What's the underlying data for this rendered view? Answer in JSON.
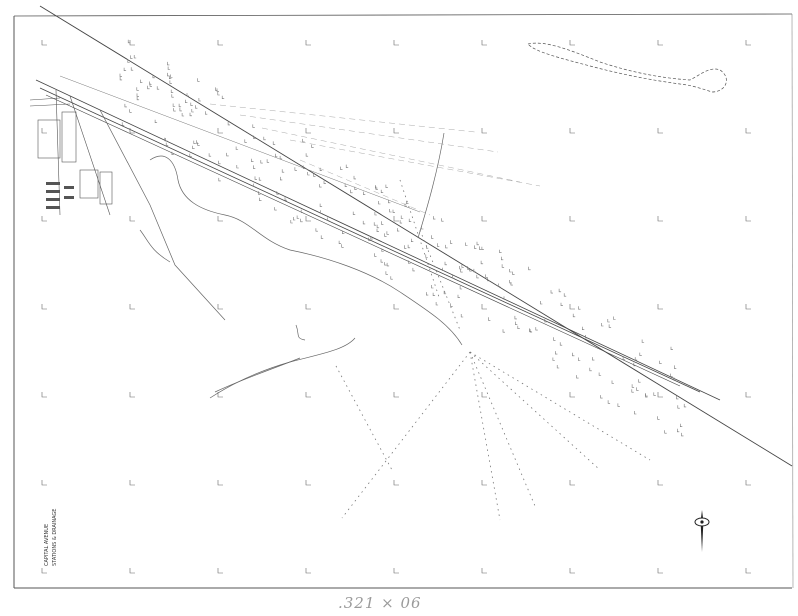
{
  "sheet_label": ".321 × 06",
  "title_block": {
    "lines": [
      "CAPITAL AVENUE",
      "STATIONS & DRAINAGE"
    ]
  },
  "colors": {
    "ink": "#555555",
    "light_ink": "#9a9a9a",
    "paper": "#ffffff"
  },
  "icons": {
    "north_arrow": "north-arrow-icon"
  }
}
